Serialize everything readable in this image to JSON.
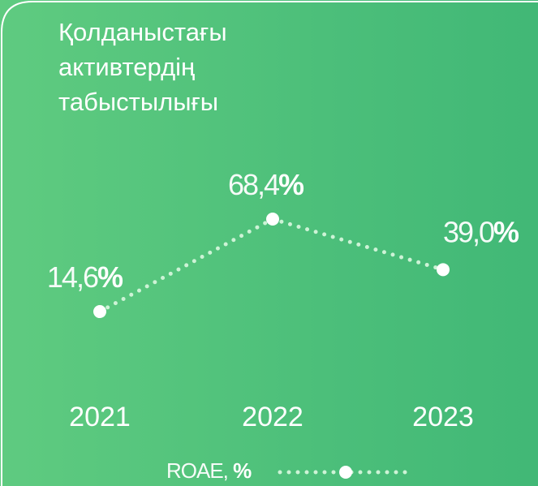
{
  "chart_data": {
    "type": "line",
    "title": "Қолданыстағы активтердің табыстылығы",
    "categories": [
      "2021",
      "2022",
      "2023"
    ],
    "series": [
      {
        "name": "ROAE, %",
        "color": "#ffffff",
        "values": [
          14.6,
          68.4,
          39.0
        ],
        "value_labels": [
          "14,6%",
          "68,4%",
          "39,0%"
        ]
      }
    ],
    "ylim": [
      0,
      100
    ]
  }
}
